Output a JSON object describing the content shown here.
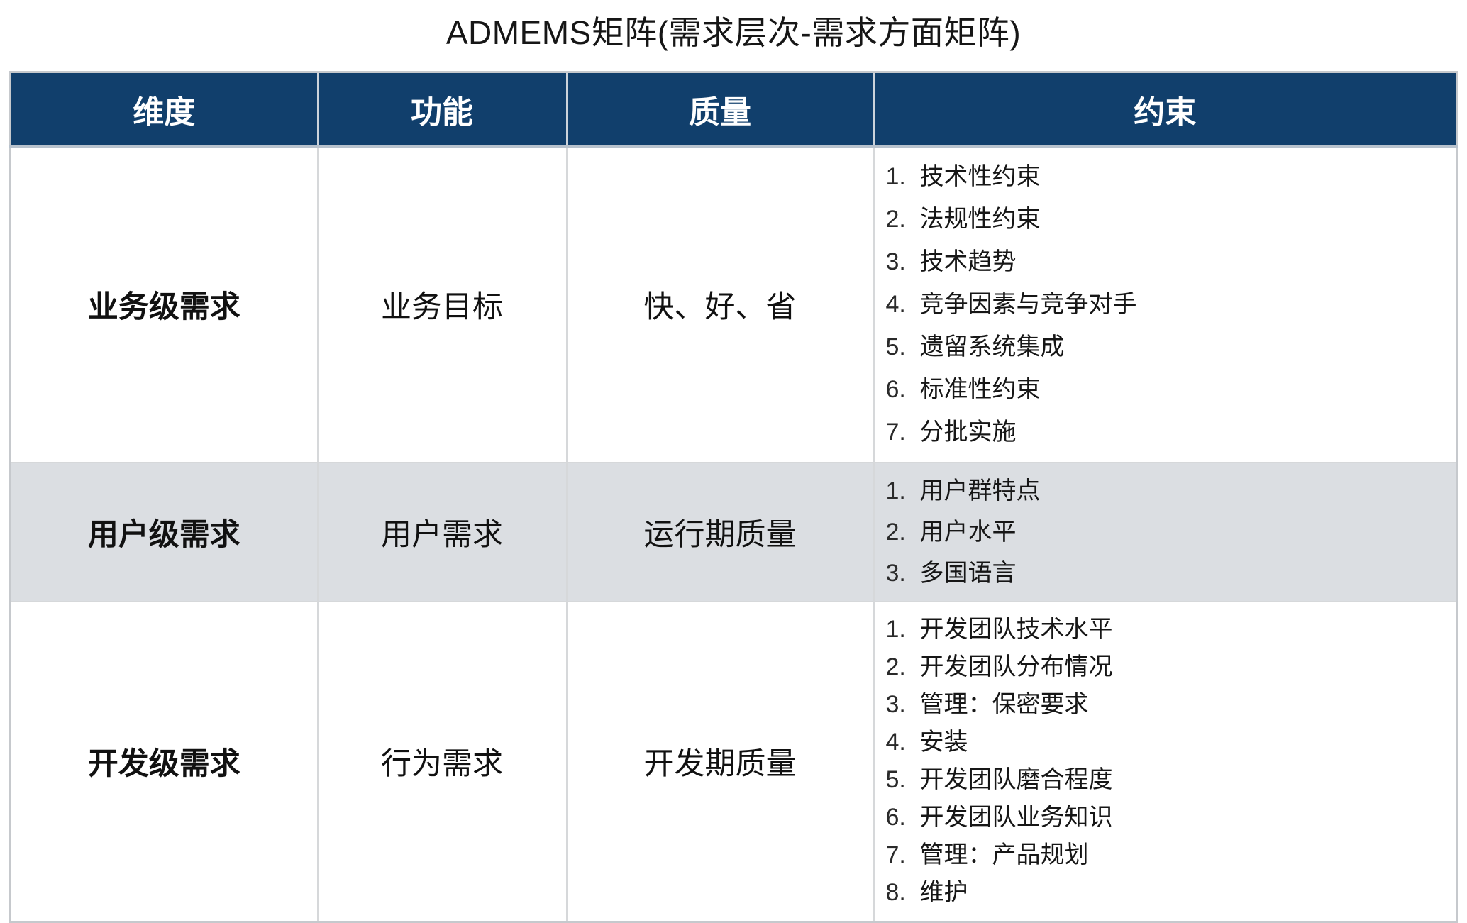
{
  "title": "ADMEMS矩阵(需求层次-需求方面矩阵)",
  "colors": {
    "header_bg": "#113f6c",
    "header_text": "#ffffff",
    "shaded_row_bg": "#dbdee2",
    "table_frame": "#c6c9cd"
  },
  "table": {
    "headers": [
      "维度",
      "功能",
      "质量",
      "约束"
    ],
    "rows": [
      {
        "dimension": "业务级需求",
        "function": "业务目标",
        "quality": "快、好、省",
        "shaded": false,
        "constraints": [
          "技术性约束",
          "法规性约束",
          "技术趋势",
          "竞争因素与竞争对手",
          "遗留系统集成",
          "标准性约束",
          "分批实施"
        ]
      },
      {
        "dimension": "用户级需求",
        "function": "用户需求",
        "quality": "运行期质量",
        "shaded": true,
        "constraints": [
          "用户群特点",
          "用户水平",
          "多国语言"
        ]
      },
      {
        "dimension": "开发级需求",
        "function": "行为需求",
        "quality": "开发期质量",
        "shaded": false,
        "constraints": [
          "开发团队技术水平",
          "开发团队分布情况",
          "管理：保密要求",
          "安装",
          "开发团队磨合程度",
          "开发团队业务知识",
          "管理：产品规划",
          "维护"
        ]
      }
    ]
  }
}
